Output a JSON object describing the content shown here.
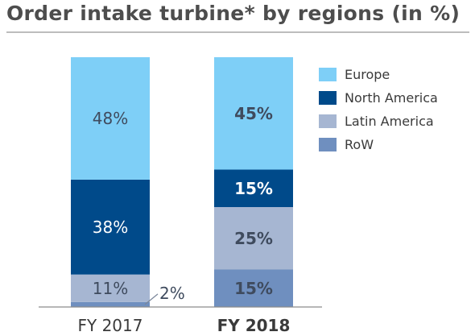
{
  "chart_data": {
    "type": "bar",
    "stacked": true,
    "percent": true,
    "title": "Order intake turbine* by regions (in %)",
    "categories": [
      "FY 2017",
      "FY 2018"
    ],
    "category_bold": [
      false,
      true
    ],
    "value_suffix": "%",
    "series": [
      {
        "name": "RoW",
        "values": [
          2,
          15
        ],
        "color": "#6f8fbf"
      },
      {
        "name": "Latin America",
        "values": [
          11,
          25
        ],
        "color": "#a6b6d2"
      },
      {
        "name": "North America",
        "values": [
          38,
          15
        ],
        "color": "#004a8a"
      },
      {
        "name": "Europe",
        "values": [
          48,
          45
        ],
        "color": "#7ecff7"
      }
    ],
    "legend": [
      "Europe",
      "North America",
      "Latin America",
      "RoW"
    ],
    "legend_position": "right",
    "ylim": [
      0,
      100
    ],
    "grid": false
  }
}
